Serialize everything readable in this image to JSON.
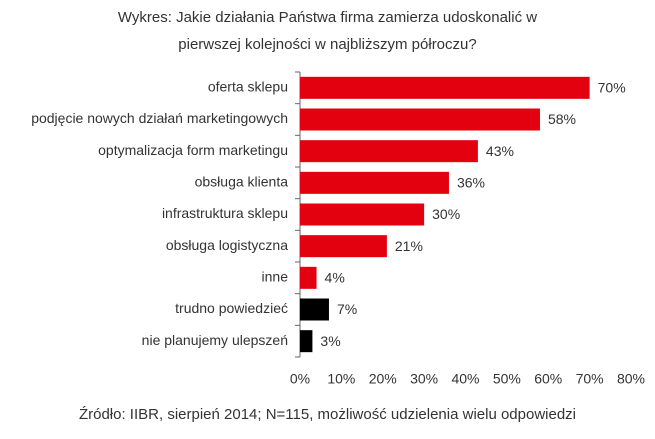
{
  "chart_data": {
    "type": "bar",
    "orientation": "horizontal",
    "title": "Wykres: Jakie działania Państwa firma zamierza udoskonalić w pierwszej kolejności w najbliższym półroczu?",
    "categories": [
      "oferta sklepu",
      "podjęcie nowych działań marketingowych",
      "optymalizacja form marketingu",
      "obsługa klienta",
      "infrastruktura sklepu",
      "obsługa logistyczna",
      "inne",
      "trudno powiedzieć",
      "nie planujemy ulepszeń"
    ],
    "values": [
      70,
      58,
      43,
      36,
      30,
      21,
      4,
      7,
      3
    ],
    "value_labels": [
      "70%",
      "58%",
      "43%",
      "36%",
      "30%",
      "21%",
      "4%",
      "7%",
      "3%"
    ],
    "colors": [
      "#e3000f",
      "#e3000f",
      "#e3000f",
      "#e3000f",
      "#e3000f",
      "#e3000f",
      "#e3000f",
      "#000000",
      "#000000"
    ],
    "xlim": [
      0,
      80
    ],
    "xticks": [
      {
        "value": 0,
        "label": "0%"
      },
      {
        "value": 10,
        "label": "10%"
      },
      {
        "value": 20,
        "label": "20%"
      },
      {
        "value": 30,
        "label": "30%"
      },
      {
        "value": 40,
        "label": "40%"
      },
      {
        "value": 50,
        "label": "50%"
      },
      {
        "value": 60,
        "label": "60%"
      },
      {
        "value": 70,
        "label": "70%"
      },
      {
        "value": 80,
        "label": "80%"
      }
    ],
    "source": "Źródło: IIBR, sierpień 2014; N=115, możliwość udzielenia wielu odpowiedzi"
  }
}
